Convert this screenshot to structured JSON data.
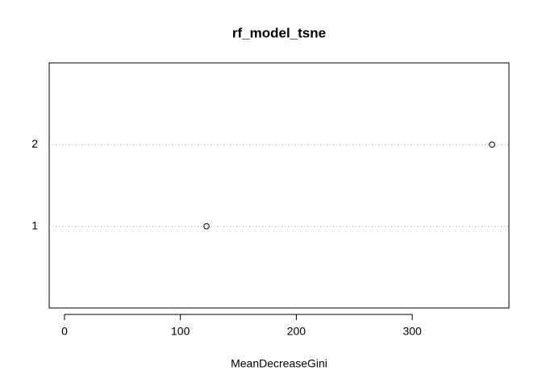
{
  "chart_data": {
    "type": "dot",
    "title": "rf_model_tsne",
    "x_label": "MeanDecreaseGini",
    "categories": [
      "1",
      "2"
    ],
    "values": [
      122.5,
      368.8
    ],
    "xlim": [
      -13.2,
      383.4
    ],
    "xticks": [
      0,
      100,
      200,
      300
    ],
    "grid": true,
    "color": "#000000"
  }
}
